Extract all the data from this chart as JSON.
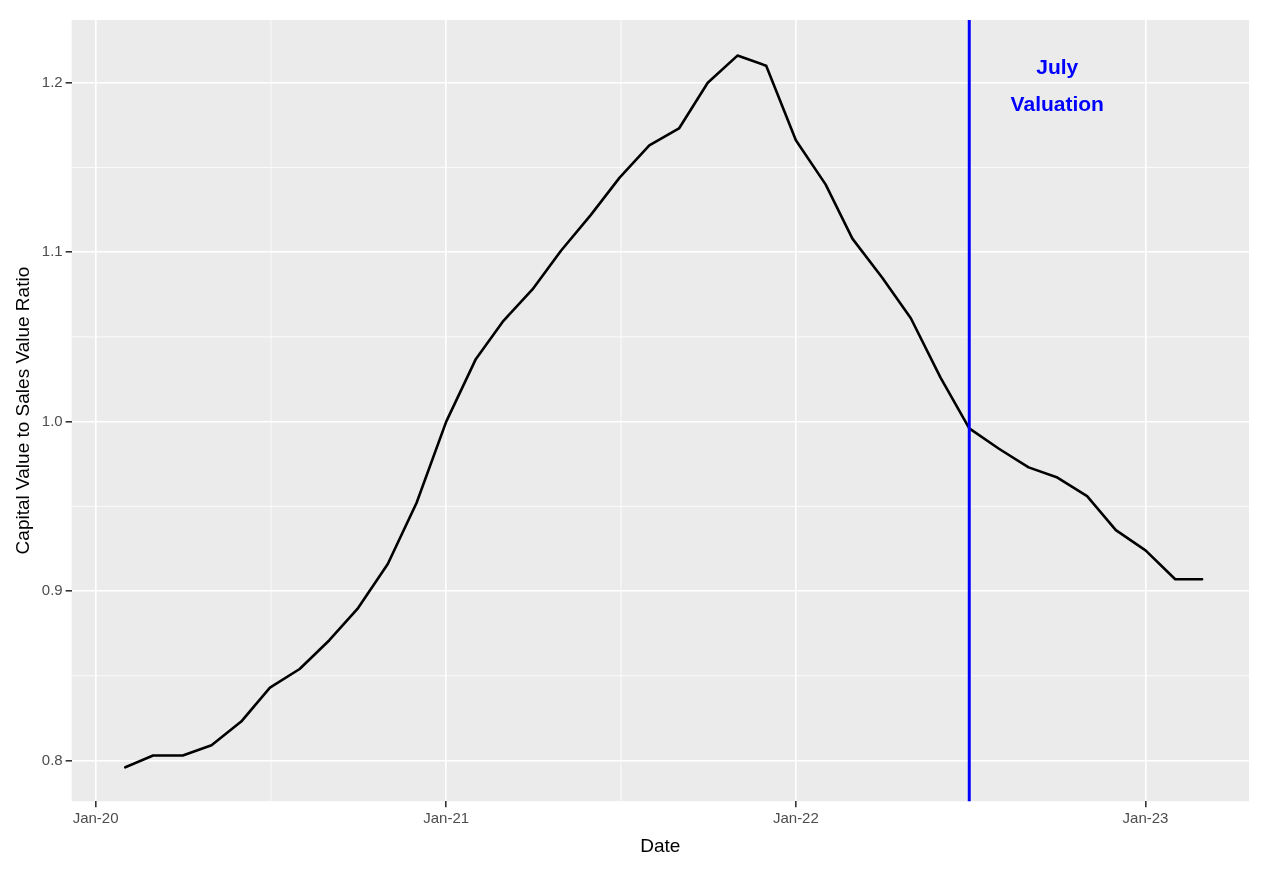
{
  "chart_data": {
    "type": "line",
    "xlabel": "Date",
    "ylabel": "Capital Value to Sales Value Ratio",
    "x": [
      "2020-02",
      "2020-03",
      "2020-04",
      "2020-05",
      "2020-06",
      "2020-07",
      "2020-08",
      "2020-09",
      "2020-10",
      "2020-11",
      "2020-12",
      "2021-01",
      "2021-02",
      "2021-03",
      "2021-04",
      "2021-05",
      "2021-06",
      "2021-07",
      "2021-08",
      "2021-09",
      "2021-10",
      "2021-11",
      "2021-12",
      "2022-01",
      "2022-02",
      "2022-03",
      "2022-04",
      "2022-05",
      "2022-06",
      "2022-07",
      "2022-08",
      "2022-09",
      "2022-10",
      "2022-11",
      "2022-12",
      "2023-01",
      "2023-02",
      "2023-03"
    ],
    "series": [
      {
        "color": "#000000",
        "values": [
          0.796,
          0.803,
          0.803,
          0.809,
          0.823,
          0.843,
          0.854,
          0.871,
          0.89,
          0.916,
          0.952,
          1.0,
          1.037,
          1.059,
          1.078,
          1.101,
          1.122,
          1.144,
          1.163,
          1.173,
          1.2,
          1.216,
          1.21,
          1.166,
          1.14,
          1.108,
          1.085,
          1.061,
          1.026,
          0.996,
          0.984,
          0.973,
          0.967,
          0.956,
          0.936,
          0.924,
          0.907,
          0.907
        ]
      }
    ],
    "xlim": [
      "2019-12-07",
      "2023-04-19"
    ],
    "xticks": [
      {
        "value": "2020-01",
        "label": "Jan-20"
      },
      {
        "value": "2021-01",
        "label": "Jan-21"
      },
      {
        "value": "2022-01",
        "label": "Jan-22"
      },
      {
        "value": "2023-01",
        "label": "Jan-23"
      }
    ],
    "ylim": [
      0.776,
      1.237
    ],
    "yticks": [
      0.8,
      0.9,
      {
        "value": 1,
        "label": "1.0"
      },
      1.1,
      1.2
    ],
    "ref_lines": [
      {
        "axis": "x",
        "value": "2022-07",
        "label": "July\nValuation",
        "color": "#0000ff"
      }
    ],
    "grid": true,
    "legend": false,
    "marker": "none",
    "line_style": "solid"
  }
}
